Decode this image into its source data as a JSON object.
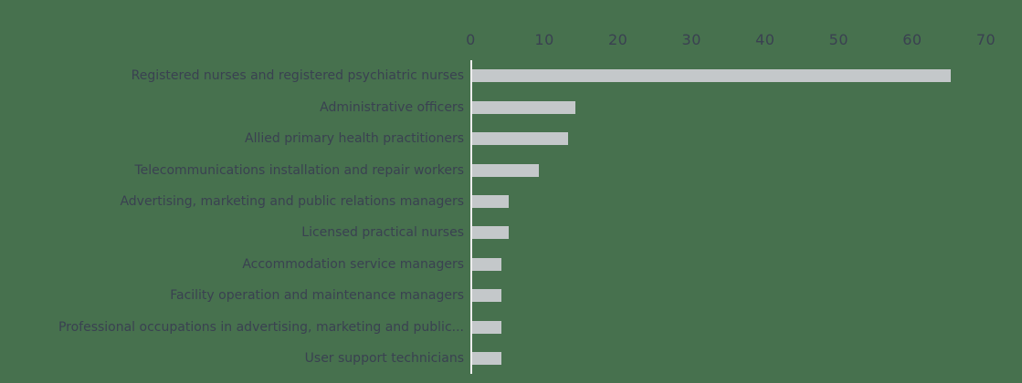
{
  "chart_data": {
    "type": "bar",
    "orientation": "horizontal",
    "title": "",
    "xlabel": "",
    "ylabel": "",
    "categories": [
      "Registered nurses and registered psychiatric nurses",
      "Administrative officers",
      "Allied primary health practitioners",
      "Telecommunications installation and repair workers",
      "Advertising, marketing and public relations managers",
      "Licensed practical nurses",
      "Accommodation service managers",
      "Facility operation and maintenance managers",
      "Professional occupations in advertising, marketing and public...",
      "User support technicians"
    ],
    "values": [
      65,
      14,
      13,
      9,
      5,
      5,
      4,
      4,
      4,
      4
    ],
    "xlim": [
      0,
      70
    ],
    "x_ticks": [
      0,
      10,
      20,
      30,
      40,
      50,
      60,
      70
    ],
    "grid": false,
    "legend": "none",
    "colors": {
      "background": "#47714e",
      "bar": "#c4c8ca",
      "text": "#3a4151",
      "axis_line": "#eeeeee"
    }
  }
}
